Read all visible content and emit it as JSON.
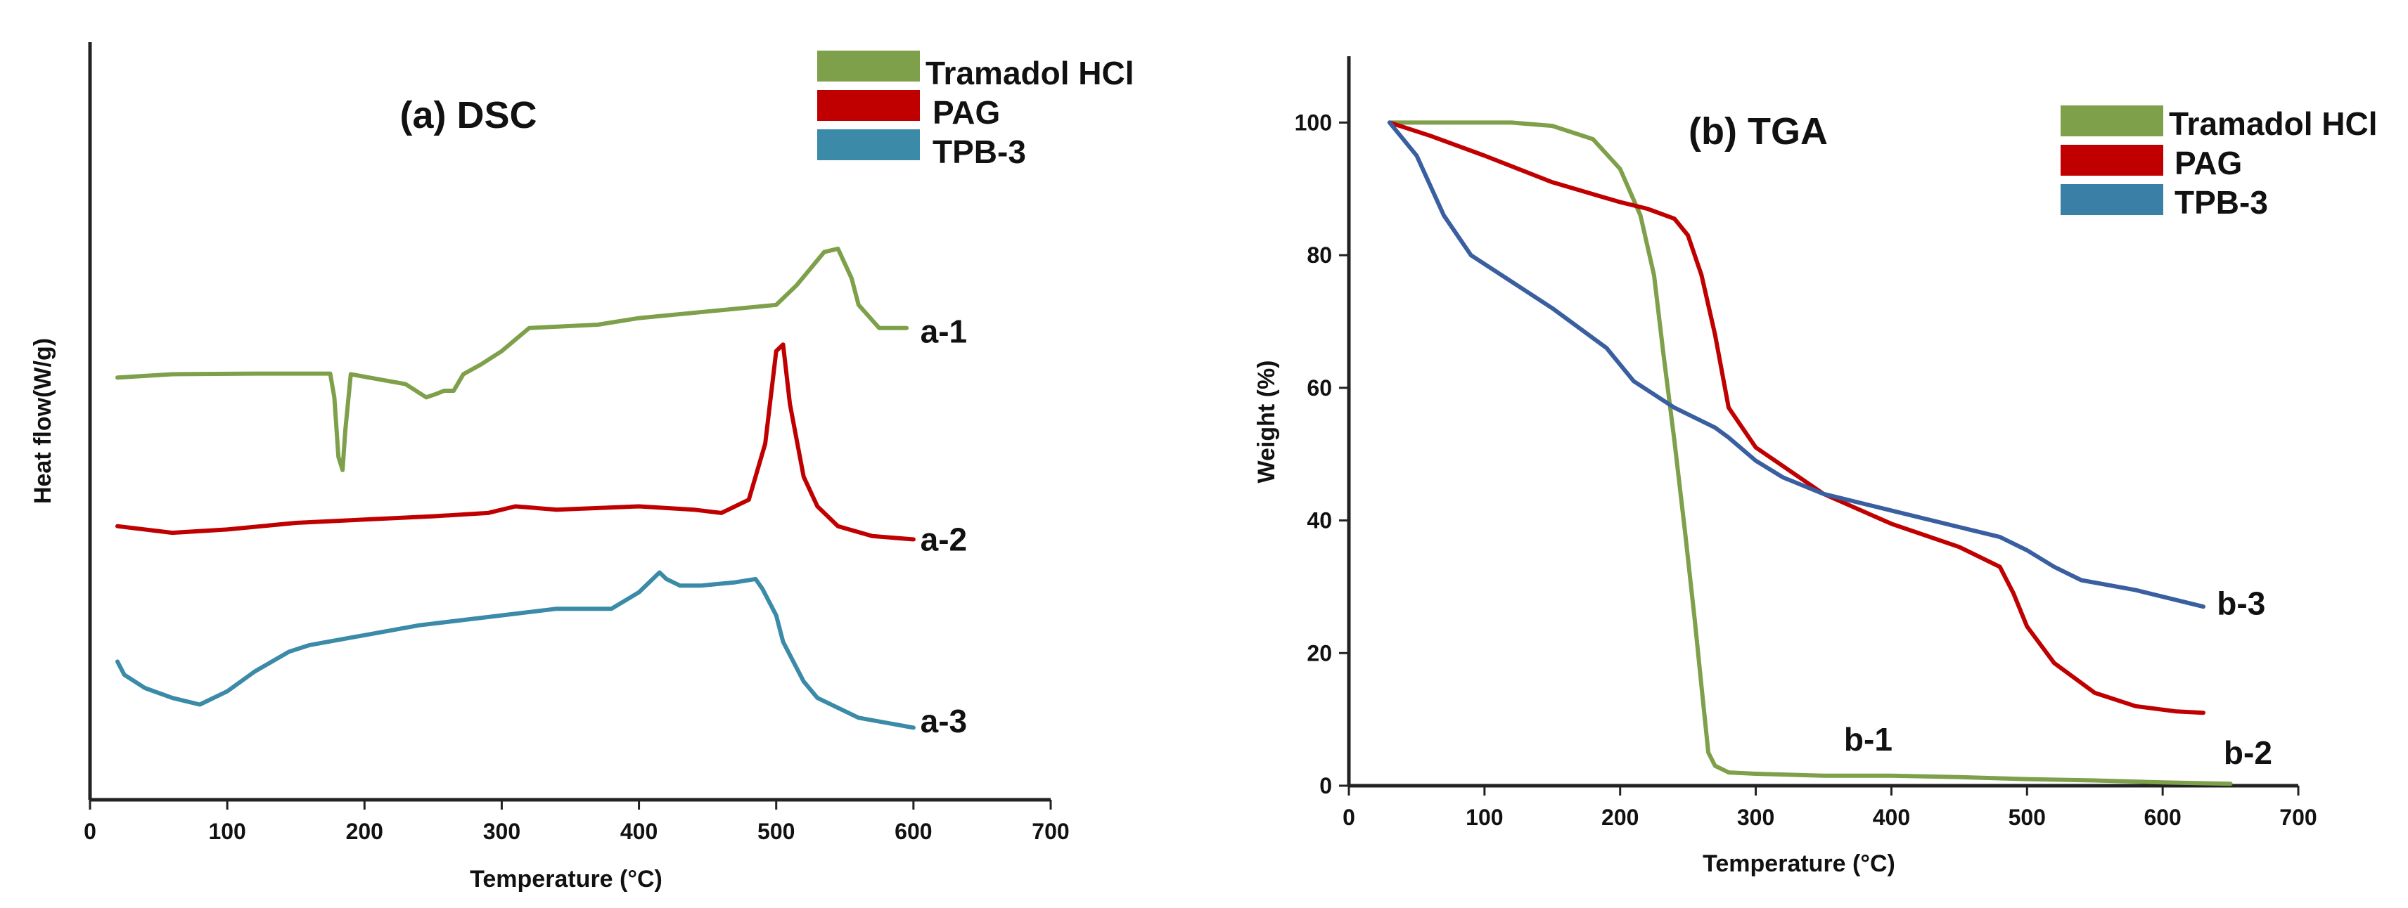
{
  "chart_data": [
    {
      "type": "line",
      "title": "(a) DSC",
      "xlabel": "Temperature (°C)",
      "ylabel": "Heat flow(W/g)",
      "xlim": [
        0,
        700
      ],
      "ylim": [
        0,
        10
      ],
      "x_ticks": [
        0,
        100,
        200,
        300,
        400,
        500,
        600,
        700
      ],
      "x_tick_labels": [
        "0",
        "100",
        "200",
        "300",
        "400",
        "500",
        "600",
        "700"
      ],
      "y_ticks_shown": false,
      "grid": false,
      "legend_position": "top-right",
      "legend": [
        "Tramadol HCl",
        "PAG",
        "TPB-3"
      ],
      "series": [
        {
          "name": "Tramadol HCl",
          "color": "#7ea04a",
          "curve_label": "a-1",
          "label_at": [
            605,
            6.9
          ],
          "x": [
            20,
            60,
            120,
            175,
            178,
            181,
            184,
            186,
            190,
            230,
            245,
            252,
            258,
            265,
            272,
            285,
            300,
            320,
            370,
            400,
            450,
            500,
            515,
            535,
            545,
            555,
            560,
            575,
            595
          ],
          "y": [
            6.2,
            6.25,
            6.26,
            6.26,
            5.9,
            5.0,
            4.8,
            5.4,
            6.25,
            6.1,
            5.9,
            5.95,
            6.0,
            6.0,
            6.25,
            6.4,
            6.6,
            6.95,
            7.0,
            7.1,
            7.2,
            7.3,
            7.6,
            8.1,
            8.15,
            7.7,
            7.3,
            6.95,
            6.95
          ]
        },
        {
          "name": "PAG",
          "color": "#c00000",
          "curve_label": "a-2",
          "label_at": [
            605,
            3.75
          ],
          "x": [
            20,
            60,
            100,
            150,
            200,
            250,
            290,
            310,
            340,
            400,
            440,
            460,
            480,
            492,
            500,
            505,
            510,
            520,
            530,
            545,
            570,
            600
          ],
          "y": [
            3.95,
            3.85,
            3.9,
            4.0,
            4.05,
            4.1,
            4.15,
            4.25,
            4.2,
            4.25,
            4.2,
            4.15,
            4.35,
            5.2,
            6.6,
            6.7,
            5.8,
            4.7,
            4.25,
            3.95,
            3.8,
            3.75
          ]
        },
        {
          "name": "TPB-3",
          "color": "#3a8aa8",
          "curve_label": "a-3",
          "label_at": [
            605,
            1.0
          ],
          "x": [
            20,
            25,
            40,
            60,
            80,
            100,
            120,
            145,
            160,
            200,
            240,
            260,
            300,
            340,
            380,
            400,
            415,
            420,
            430,
            445,
            470,
            485,
            490,
            500,
            505,
            510,
            520,
            530,
            560,
            600
          ],
          "y": [
            1.9,
            1.7,
            1.5,
            1.35,
            1.25,
            1.45,
            1.75,
            2.05,
            2.15,
            2.3,
            2.45,
            2.5,
            2.6,
            2.7,
            2.7,
            2.95,
            3.25,
            3.15,
            3.05,
            3.05,
            3.1,
            3.15,
            3.0,
            2.6,
            2.2,
            2.0,
            1.6,
            1.35,
            1.05,
            0.9
          ]
        }
      ]
    },
    {
      "type": "line",
      "title": "(b) TGA",
      "xlabel": "Temperature (°C)",
      "ylabel": "Weight (%)",
      "xlim": [
        0,
        700
      ],
      "ylim": [
        0,
        110
      ],
      "x_ticks": [
        0,
        100,
        200,
        300,
        400,
        500,
        600,
        700
      ],
      "x_tick_labels": [
        "0",
        "100",
        "200",
        "300",
        "400",
        "500",
        "600",
        "700"
      ],
      "y_ticks": [
        0,
        20,
        40,
        60,
        80,
        100
      ],
      "y_tick_labels": [
        "0",
        "20",
        "40",
        "60",
        "80",
        "100"
      ],
      "grid": false,
      "legend_position": "top-right",
      "legend": [
        "Tramadol HCl",
        "PAG",
        "TPB-3"
      ],
      "series": [
        {
          "name": "Tramadol HCl",
          "color": "#7ea04a",
          "curve_label": "b-1",
          "label_at": [
            365,
            7
          ],
          "x": [
            30,
            80,
            120,
            150,
            180,
            200,
            215,
            225,
            232,
            240,
            248,
            255,
            260,
            265,
            270,
            280,
            300,
            350,
            400,
            450,
            500,
            550,
            600,
            650
          ],
          "y": [
            100,
            100,
            100,
            99.5,
            97.5,
            93,
            86,
            77,
            65,
            52,
            38,
            25,
            15,
            5,
            3,
            2,
            1.8,
            1.5,
            1.5,
            1.3,
            1,
            0.8,
            0.5,
            0.3
          ]
        },
        {
          "name": "PAG",
          "color": "#c00000",
          "curve_label": "b-2",
          "label_at": [
            645,
            5
          ],
          "x": [
            30,
            60,
            100,
            150,
            200,
            220,
            240,
            250,
            260,
            270,
            280,
            290,
            300,
            350,
            400,
            450,
            480,
            490,
            500,
            520,
            550,
            580,
            610,
            630
          ],
          "y": [
            100,
            98,
            95,
            91,
            88,
            87,
            85.5,
            83,
            77,
            68,
            57,
            54,
            51,
            44,
            39.5,
            36,
            33,
            29,
            24,
            18.5,
            14,
            12,
            11.2,
            11
          ]
        },
        {
          "name": "TPB-3",
          "color": "#3a5fa0",
          "curve_label": "b-3",
          "label_at": [
            640,
            27.5
          ],
          "x": [
            30,
            50,
            70,
            90,
            120,
            150,
            190,
            210,
            240,
            270,
            280,
            300,
            320,
            350,
            400,
            450,
            480,
            500,
            520,
            540,
            580,
            630
          ],
          "y": [
            100,
            95,
            86,
            80,
            76,
            72,
            66,
            61,
            57,
            54,
            52.5,
            49,
            46.5,
            44,
            41.5,
            39,
            37.5,
            35.5,
            33,
            31,
            29.5,
            27
          ]
        }
      ]
    }
  ]
}
